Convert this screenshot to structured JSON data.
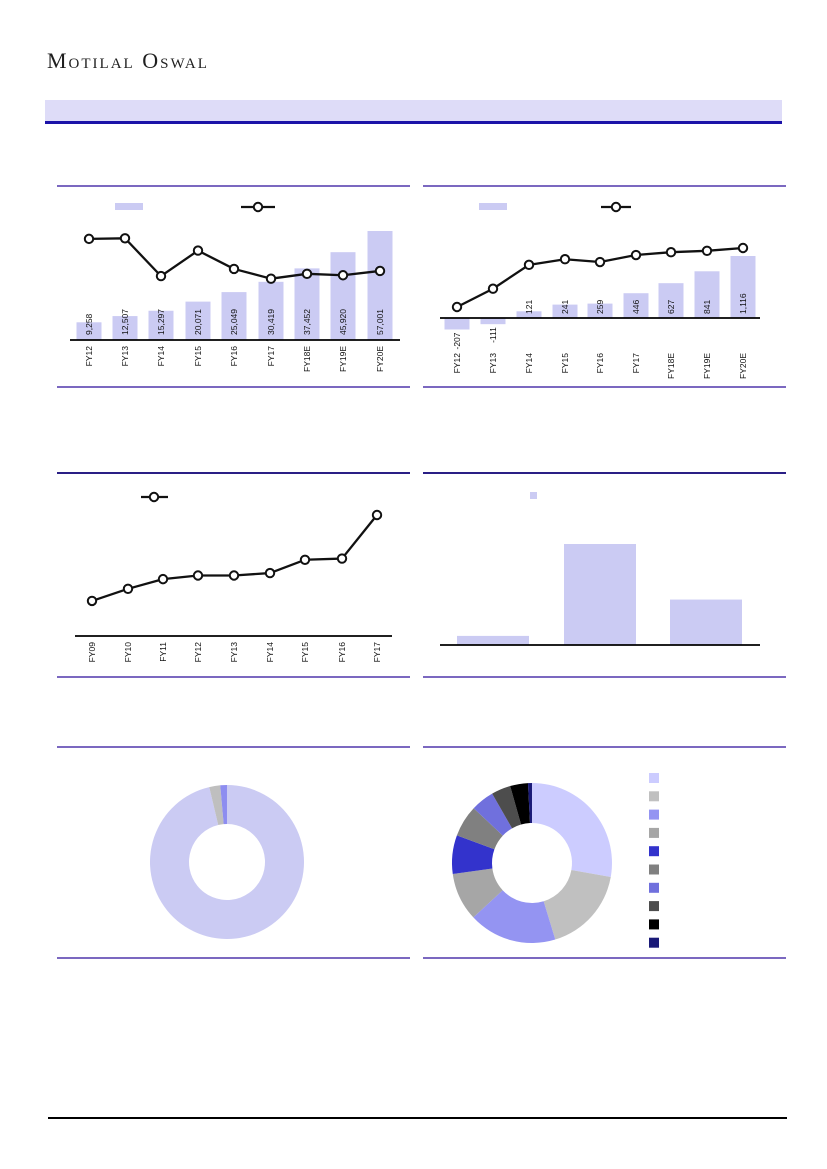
{
  "logo": {
    "text": "Motilal Oswal"
  },
  "header_banner": {
    "text": ""
  },
  "colors": {
    "bar_fill": "#cbcbf3",
    "banner_fill": "#dedcf8",
    "banner_underline": "#1b12a8",
    "rule_purple": "#7b68c0",
    "rule_navy": "#2a1f85",
    "line_stroke": "#111111",
    "marker_fill": "#ffffff",
    "footer_rule": "#000000"
  },
  "chart_data": [
    {
      "name": "top-left-bar-line",
      "type": "bar+line",
      "categories": [
        "FY12",
        "FY13",
        "FY14",
        "FY15",
        "FY16",
        "FY17",
        "FY18E",
        "FY19E",
        "FY20E"
      ],
      "bar_values": [
        9258,
        12507,
        15297,
        20071,
        25049,
        30419,
        37452,
        45920,
        57001
      ],
      "bar_labels": [
        "9,258",
        "12,507",
        "15,297",
        "20,071",
        "25,049",
        "30,419",
        "37,452",
        "45,920",
        "57,001"
      ],
      "line_values_estimated": [
        35.3,
        35.5,
        22.3,
        31.2,
        24.8,
        21.4,
        23.1,
        22.6,
        24.1
      ],
      "legend": {
        "swatches": [
          "bar",
          "line-marker"
        ],
        "labels_visible": false
      },
      "grid": false
    },
    {
      "name": "top-right-bar-line",
      "type": "bar+line",
      "categories": [
        "FY12",
        "FY13",
        "FY14",
        "FY15",
        "FY16",
        "FY17",
        "FY18E",
        "FY19E",
        "FY20E"
      ],
      "bar_values": [
        -207,
        -111,
        121,
        241,
        259,
        446,
        627,
        841,
        1116
      ],
      "bar_labels": [
        "-207",
        "-111",
        "121",
        "241",
        "259",
        "446",
        "627",
        "841",
        "1,116"
      ],
      "line_values_estimated": [
        -2.2,
        -0.9,
        0.8,
        1.2,
        1.0,
        1.5,
        1.7,
        1.8,
        2.0
      ],
      "legend": {
        "swatches": [
          "bar",
          "line-marker"
        ],
        "labels_visible": false
      },
      "grid": false
    },
    {
      "name": "middle-left-line",
      "type": "line",
      "categories": [
        "FY09",
        "FY10",
        "FY11",
        "FY12",
        "FY13",
        "FY14",
        "FY15",
        "FY16",
        "FY17"
      ],
      "values_relative": [
        29,
        39,
        47,
        50,
        50,
        52,
        63,
        64,
        100
      ],
      "legend": {
        "swatches": [
          "line-marker"
        ],
        "labels_visible": false
      },
      "grid": false
    },
    {
      "name": "middle-right-bars",
      "type": "bar",
      "categories": [
        "",
        "",
        ""
      ],
      "values_relative": [
        9,
        100,
        45
      ],
      "legend": {
        "swatches": [
          "bar"
        ],
        "labels_visible": false
      },
      "grid": false
    },
    {
      "name": "bottom-left-donut",
      "type": "donut",
      "values_percent": [
        96.3,
        2.3,
        1.4
      ],
      "colors": [
        "#cbcbf3",
        "#bfbfbf",
        "#8d8df0"
      ],
      "legend": {
        "labels_visible": false
      }
    },
    {
      "name": "bottom-right-donut",
      "type": "donut",
      "values_percent": [
        27.8,
        17.5,
        17.8,
        9.7,
        7.8,
        6.4,
        4.7,
        3.9,
        3.6,
        0.8
      ],
      "colors": [
        "#ccccff",
        "#c0c0c0",
        "#9494f2",
        "#a6a6a6",
        "#3333cc",
        "#808080",
        "#7070dd",
        "#4d4d4d",
        "#000000",
        "#1a1a78"
      ],
      "legend": {
        "swatch_colors": [
          "#ccccff",
          "#c0c0c0",
          "#9494f2",
          "#a6a6a6",
          "#3333cc",
          "#808080",
          "#7070dd",
          "#4d4d4d",
          "#000000",
          "#1a1a78"
        ],
        "labels_visible": false
      }
    }
  ]
}
